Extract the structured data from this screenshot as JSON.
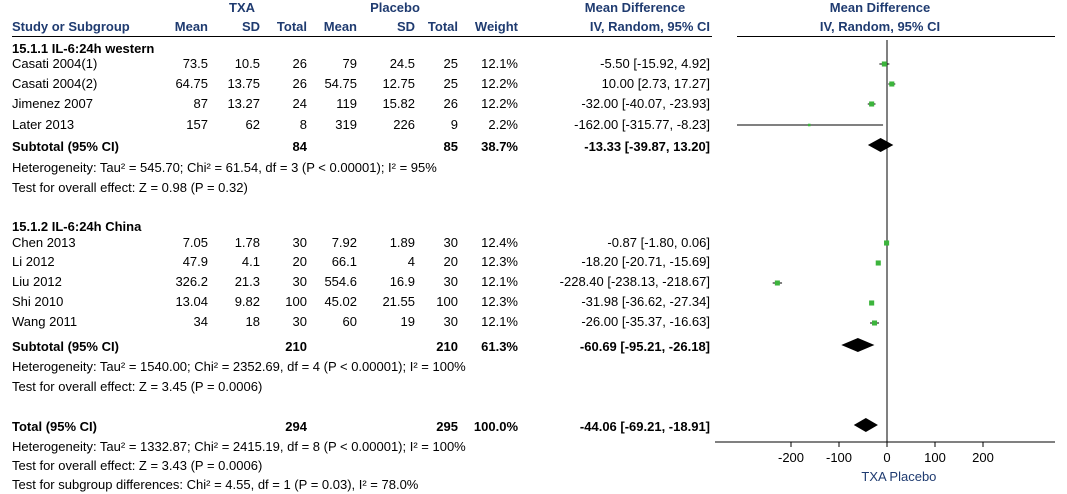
{
  "header": {
    "group1": "TXA",
    "group2": "Placebo",
    "md_title": "Mean Difference",
    "md_method": "IV, Random, 95% CI",
    "plot_title": "Mean Difference",
    "plot_method": "IV, Random, 95% CI",
    "cols": {
      "study": "Study or Subgroup",
      "mean1": "Mean",
      "sd1": "SD",
      "total1": "Total",
      "mean2": "Mean",
      "sd2": "SD",
      "total2": "Total",
      "weight": "Weight"
    }
  },
  "subgroups": [
    {
      "title": "15.1.1 IL-6:24h western",
      "subtotal": {
        "label": "Subtotal (95% CI)",
        "total1": "84",
        "total2": "85",
        "weight": "38.7%",
        "ci_text": "-13.33 [-39.87, 13.20]"
      },
      "heterogeneity": "Heterogeneity: Tau² = 545.70; Chi² = 61.54, df = 3 (P < 0.00001); I² = 95%",
      "overall": "Test for overall effect: Z = 0.98 (P = 0.32)"
    },
    {
      "title": "15.1.2 IL-6:24h China",
      "subtotal": {
        "label": "Subtotal (95% CI)",
        "total1": "210",
        "total2": "210",
        "weight": "61.3%",
        "ci_text": "-60.69 [-95.21, -26.18]"
      },
      "heterogeneity": "Heterogeneity: Tau² = 1540.00; Chi² = 2352.69, df = 4 (P < 0.00001); I² = 100%",
      "overall": "Test for overall effect: Z = 3.45 (P = 0.0006)"
    }
  ],
  "total": {
    "label": "Total (95% CI)",
    "total1": "294",
    "total2": "295",
    "weight": "100.0%",
    "ci_text": "-44.06 [-69.21, -18.91]",
    "heterogeneity": "Heterogeneity: Tau² = 1332.87; Chi² = 2415.19, df = 8 (P < 0.00001); I² = 100%",
    "overall": "Test for overall effect: Z = 3.43 (P = 0.0006)",
    "subgroup_diff": "Test for subgroup differences: Chi² = 4.55, df = 1 (P = 0.03), I² = 78.0%"
  },
  "chart_data": {
    "type": "forest",
    "x_ticks": [
      "-200",
      "-100",
      "0",
      "100",
      "200"
    ],
    "x_tick_values": [
      -200,
      -100,
      0,
      100,
      200
    ],
    "xlim": [
      -300,
      300
    ],
    "left_label": "TXA",
    "right_label": "Placebo",
    "colors": {
      "square": "#3cb43c",
      "diamond": "#000000",
      "axis": "#000000"
    },
    "studies": [
      {
        "name": "Casati 2004(1)",
        "mean1": "73.5",
        "sd1": "10.5",
        "total1": "26",
        "mean2": "79",
        "sd2": "24.5",
        "total2": "25",
        "weight": "12.1%",
        "ci_text": "-5.50 [-15.92, 4.92]",
        "md": -5.5,
        "lo": -15.92,
        "hi": 4.92,
        "group": 0
      },
      {
        "name": "Casati 2004(2)",
        "mean1": "64.75",
        "sd1": "13.75",
        "total1": "26",
        "mean2": "54.75",
        "sd2": "12.75",
        "total2": "25",
        "weight": "12.2%",
        "ci_text": "10.00 [2.73, 17.27]",
        "md": 10.0,
        "lo": 2.73,
        "hi": 17.27,
        "group": 0
      },
      {
        "name": "Jimenez 2007",
        "mean1": "87",
        "sd1": "13.27",
        "total1": "24",
        "mean2": "119",
        "sd2": "15.82",
        "total2": "26",
        "weight": "12.2%",
        "ci_text": "-32.00 [-40.07, -23.93]",
        "md": -32.0,
        "lo": -40.07,
        "hi": -23.93,
        "group": 0
      },
      {
        "name": "Later 2013",
        "mean1": "157",
        "sd1": "62",
        "total1": "8",
        "mean2": "319",
        "sd2": "226",
        "total2": "9",
        "weight": "2.2%",
        "ci_text": "-162.00 [-315.77, -8.23]",
        "md": -162.0,
        "lo": -315.77,
        "hi": -8.23,
        "group": 0
      },
      {
        "name": "Chen 2013",
        "mean1": "7.05",
        "sd1": "1.78",
        "total1": "30",
        "mean2": "7.92",
        "sd2": "1.89",
        "total2": "30",
        "weight": "12.4%",
        "ci_text": "-0.87 [-1.80, 0.06]",
        "md": -0.87,
        "lo": -1.8,
        "hi": 0.06,
        "group": 1
      },
      {
        "name": "Li 2012",
        "mean1": "47.9",
        "sd1": "4.1",
        "total1": "20",
        "mean2": "66.1",
        "sd2": "4",
        "total2": "20",
        "weight": "12.3%",
        "ci_text": "-18.20 [-20.71, -15.69]",
        "md": -18.2,
        "lo": -20.71,
        "hi": -15.69,
        "group": 1
      },
      {
        "name": "Liu 2012",
        "mean1": "326.2",
        "sd1": "21.3",
        "total1": "30",
        "mean2": "554.6",
        "sd2": "16.9",
        "total2": "30",
        "weight": "12.1%",
        "ci_text": "-228.40 [-238.13, -218.67]",
        "md": -228.4,
        "lo": -238.13,
        "hi": -218.67,
        "group": 1
      },
      {
        "name": "Shi 2010",
        "mean1": "13.04",
        "sd1": "9.82",
        "total1": "100",
        "mean2": "45.02",
        "sd2": "21.55",
        "total2": "100",
        "weight": "12.3%",
        "ci_text": "-31.98 [-36.62, -27.34]",
        "md": -31.98,
        "lo": -36.62,
        "hi": -27.34,
        "group": 1
      },
      {
        "name": "Wang 2011",
        "mean1": "34",
        "sd1": "18",
        "total1": "30",
        "mean2": "60",
        "sd2": "19",
        "total2": "30",
        "weight": "12.1%",
        "ci_text": "-26.00 [-35.37, -16.63]",
        "md": -26.0,
        "lo": -35.37,
        "hi": -16.63,
        "group": 1
      }
    ],
    "pooled": [
      {
        "name": "Subtotal western",
        "md": -13.33,
        "lo": -39.87,
        "hi": 13.2
      },
      {
        "name": "Subtotal China",
        "md": -60.69,
        "lo": -95.21,
        "hi": -26.18
      },
      {
        "name": "Total",
        "md": -44.06,
        "lo": -69.21,
        "hi": -18.91
      }
    ]
  }
}
